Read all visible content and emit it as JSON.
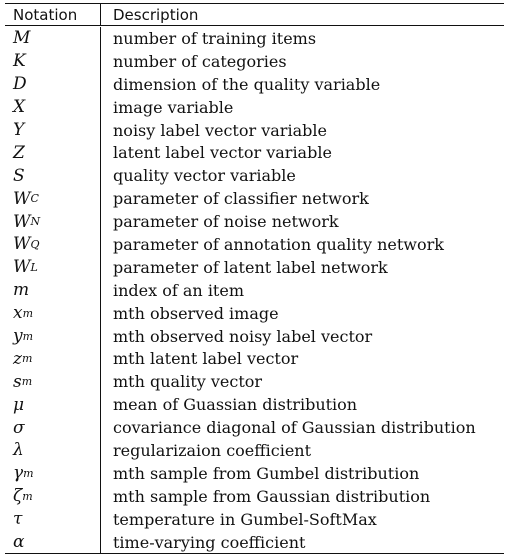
{
  "table": {
    "header": {
      "notation": "Notation",
      "description": "Description"
    },
    "rows": [
      {
        "symbol": "M",
        "sub": "",
        "description": "number of training items"
      },
      {
        "symbol": "K",
        "sub": "",
        "description": "number of categories"
      },
      {
        "symbol": "D",
        "sub": "",
        "description": "dimension of the quality variable"
      },
      {
        "symbol": "X",
        "sub": "",
        "description": "image variable"
      },
      {
        "symbol": "Y",
        "sub": "",
        "description": "noisy label vector variable"
      },
      {
        "symbol": "Z",
        "sub": "",
        "description": "latent label vector variable"
      },
      {
        "symbol": "S",
        "sub": "",
        "description": "quality vector variable"
      },
      {
        "symbol": "W",
        "sub": "C",
        "description": "parameter of classifier network"
      },
      {
        "symbol": "W",
        "sub": "N",
        "description": "parameter of noise network"
      },
      {
        "symbol": "W",
        "sub": "Q",
        "description": "parameter of annotation quality network"
      },
      {
        "symbol": "W",
        "sub": "L",
        "description": "parameter of latent label network"
      },
      {
        "symbol": "m",
        "sub": "",
        "description": "index of an item"
      },
      {
        "symbol": "x",
        "sub": "m",
        "description": "mth observed image"
      },
      {
        "symbol": "y",
        "sub": "m",
        "description": "mth observed noisy label vector"
      },
      {
        "symbol": "z",
        "sub": "m",
        "description": "mth latent label vector"
      },
      {
        "symbol": "s",
        "sub": "m",
        "description": "mth quality vector"
      },
      {
        "symbol": "μ",
        "sub": "",
        "description": "mean of Guassian distribution"
      },
      {
        "symbol": "σ",
        "sub": "",
        "description": "covariance diagonal of Gaussian distribution"
      },
      {
        "symbol": "λ",
        "sub": "",
        "description": "regularizaion coefficient"
      },
      {
        "symbol": "γ",
        "sub": "m",
        "description": "mth sample from Gumbel distribution"
      },
      {
        "symbol": "ζ",
        "sub": "m",
        "description": "mth sample from Gaussian distribution"
      },
      {
        "symbol": "τ",
        "sub": "",
        "description": "temperature in Gumbel-SoftMax"
      },
      {
        "symbol": "α",
        "sub": "",
        "description": "time-varying coefficient"
      }
    ]
  }
}
